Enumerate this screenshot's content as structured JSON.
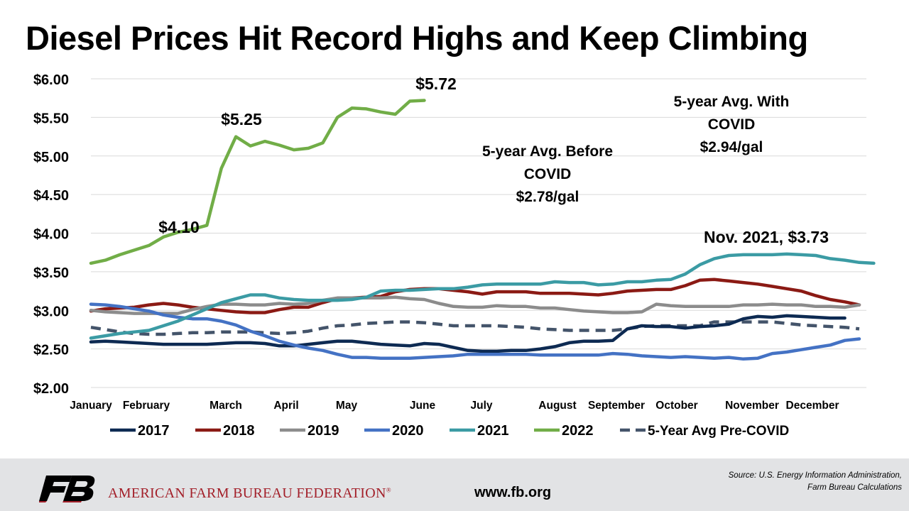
{
  "page": {
    "title": "Diesel Prices Hit Record Highs and Keep Climbing",
    "org_name": "AMERICAN FARM BUREAU FEDERATION",
    "org_mark": "®",
    "website": "www.fb.org",
    "source_line1": "Source: U.S. Energy Information Administration,",
    "source_line2": "Farm Bureau Calculations",
    "brand_color": "#a3202a"
  },
  "chart_data": {
    "type": "line",
    "title": "Diesel Prices Hit Record Highs and Keep Climbing",
    "xlabel": "",
    "ylabel": "",
    "ylim": [
      2.0,
      6.0
    ],
    "yticks": [
      "$2.00",
      "$2.50",
      "$3.00",
      "$3.50",
      "$4.00",
      "$4.50",
      "$5.00",
      "$5.50",
      "$6.00"
    ],
    "months": [
      "January",
      "February",
      "March",
      "April",
      "May",
      "June",
      "July",
      "August",
      "September",
      "October",
      "November",
      "December"
    ],
    "grid": "horizontal",
    "legend_position": "bottom",
    "series": [
      {
        "name": "2017",
        "color": "#0d2a52",
        "dash": false,
        "values": [
          2.59,
          2.6,
          2.59,
          2.58,
          2.57,
          2.56,
          2.56,
          2.56,
          2.56,
          2.57,
          2.58,
          2.58,
          2.57,
          2.54,
          2.54,
          2.56,
          2.58,
          2.6,
          2.6,
          2.58,
          2.56,
          2.55,
          2.54,
          2.57,
          2.56,
          2.52,
          2.48,
          2.47,
          2.47,
          2.48,
          2.48,
          2.5,
          2.53,
          2.58,
          2.6,
          2.6,
          2.61,
          2.76,
          2.8,
          2.79,
          2.79,
          2.77,
          2.79,
          2.8,
          2.82,
          2.89,
          2.92,
          2.91,
          2.93,
          2.92,
          2.91,
          2.9,
          2.9
        ]
      },
      {
        "name": "2018",
        "color": "#8b1a14",
        "dash": false,
        "values": [
          2.99,
          3.02,
          3.03,
          3.04,
          3.07,
          3.09,
          3.07,
          3.04,
          3.02,
          3.0,
          2.98,
          2.97,
          2.97,
          3.01,
          3.04,
          3.04,
          3.1,
          3.15,
          3.16,
          3.17,
          3.18,
          3.24,
          3.27,
          3.28,
          3.28,
          3.26,
          3.24,
          3.21,
          3.24,
          3.24,
          3.24,
          3.22,
          3.22,
          3.22,
          3.21,
          3.2,
          3.22,
          3.25,
          3.26,
          3.27,
          3.27,
          3.32,
          3.39,
          3.4,
          3.38,
          3.36,
          3.34,
          3.31,
          3.28,
          3.25,
          3.19,
          3.14,
          3.11,
          3.07
        ]
      },
      {
        "name": "2019",
        "color": "#8c8c8c",
        "dash": false,
        "values": [
          3.0,
          2.98,
          2.97,
          2.96,
          2.96,
          2.96,
          2.96,
          3.01,
          3.05,
          3.08,
          3.08,
          3.07,
          3.07,
          3.09,
          3.08,
          3.09,
          3.13,
          3.16,
          3.16,
          3.16,
          3.16,
          3.17,
          3.15,
          3.14,
          3.09,
          3.05,
          3.04,
          3.04,
          3.06,
          3.05,
          3.05,
          3.03,
          3.03,
          3.01,
          2.99,
          2.98,
          2.97,
          2.97,
          2.98,
          3.08,
          3.06,
          3.05,
          3.05,
          3.05,
          3.05,
          3.07,
          3.07,
          3.08,
          3.07,
          3.07,
          3.05,
          3.05,
          3.04,
          3.07
        ]
      },
      {
        "name": "2020",
        "color": "#4472c4",
        "dash": false,
        "values": [
          3.08,
          3.07,
          3.05,
          3.02,
          2.99,
          2.94,
          2.91,
          2.89,
          2.89,
          2.86,
          2.81,
          2.73,
          2.67,
          2.6,
          2.55,
          2.51,
          2.48,
          2.43,
          2.39,
          2.39,
          2.38,
          2.38,
          2.38,
          2.39,
          2.4,
          2.41,
          2.43,
          2.43,
          2.43,
          2.43,
          2.43,
          2.42,
          2.42,
          2.42,
          2.42,
          2.42,
          2.44,
          2.43,
          2.41,
          2.4,
          2.39,
          2.4,
          2.39,
          2.38,
          2.39,
          2.37,
          2.38,
          2.44,
          2.46,
          2.49,
          2.52,
          2.55,
          2.61,
          2.63
        ]
      },
      {
        "name": "2021",
        "color": "#3b9ba4",
        "dash": false,
        "values": [
          2.64,
          2.67,
          2.7,
          2.72,
          2.74,
          2.8,
          2.86,
          2.94,
          3.02,
          3.1,
          3.15,
          3.2,
          3.2,
          3.16,
          3.14,
          3.13,
          3.13,
          3.13,
          3.14,
          3.17,
          3.25,
          3.26,
          3.26,
          3.27,
          3.28,
          3.28,
          3.3,
          3.33,
          3.34,
          3.34,
          3.34,
          3.34,
          3.37,
          3.36,
          3.36,
          3.33,
          3.34,
          3.37,
          3.37,
          3.39,
          3.4,
          3.47,
          3.59,
          3.67,
          3.71,
          3.72,
          3.72,
          3.72,
          3.73,
          3.72,
          3.71,
          3.67,
          3.65,
          3.62,
          3.61
        ]
      },
      {
        "name": "2022",
        "color": "#71ad47",
        "dash": false,
        "values": [
          3.61,
          3.65,
          3.72,
          3.78,
          3.84,
          3.95,
          4.01,
          4.05,
          4.1,
          4.84,
          5.25,
          5.13,
          5.19,
          5.14,
          5.08,
          5.1,
          5.17,
          5.5,
          5.62,
          5.61,
          5.57,
          5.54,
          5.71,
          5.72
        ]
      },
      {
        "name": "5-Year Avg Pre-COVID",
        "color": "#44546a",
        "dash": true,
        "values": [
          2.78,
          2.75,
          2.72,
          2.7,
          2.69,
          2.69,
          2.7,
          2.71,
          2.71,
          2.72,
          2.72,
          2.72,
          2.71,
          2.7,
          2.71,
          2.73,
          2.77,
          2.8,
          2.81,
          2.83,
          2.84,
          2.85,
          2.85,
          2.84,
          2.82,
          2.8,
          2.8,
          2.8,
          2.8,
          2.79,
          2.78,
          2.76,
          2.75,
          2.74,
          2.74,
          2.74,
          2.74,
          2.76,
          2.79,
          2.8,
          2.8,
          2.8,
          2.8,
          2.85,
          2.85,
          2.85,
          2.85,
          2.85,
          2.83,
          2.81,
          2.8,
          2.79,
          2.78,
          2.76
        ]
      }
    ],
    "annotations": [
      {
        "text": "$4.10",
        "series": "2022",
        "index": 8
      },
      {
        "text": "$5.25",
        "series": "2022",
        "index": 10
      },
      {
        "text": "$5.72",
        "series": "2022",
        "index": 23
      },
      {
        "text": "Nov. 2021, $3.73",
        "series": "2021",
        "index": 48
      },
      {
        "lines": [
          "5-year Avg. Before",
          "COVID",
          "$2.78/gal"
        ]
      },
      {
        "lines": [
          "5-year Avg. With",
          "COVID",
          "$2.94/gal"
        ]
      }
    ]
  }
}
